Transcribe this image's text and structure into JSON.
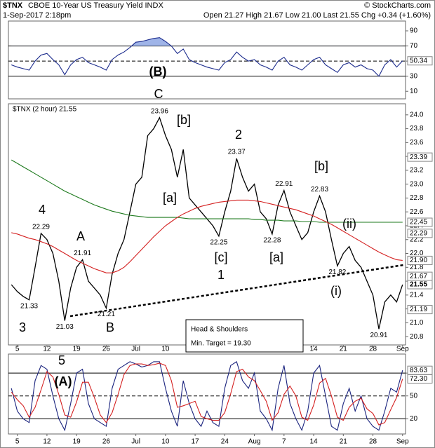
{
  "header": {
    "symbol": "$TNX",
    "name": "CBOE 10-Year US Treasury Yield INDX",
    "credit": "© StockCharts.com",
    "date": "1-Sep-2017 2:18pm",
    "quote": "Open 21.27 High 21.67 Low 21.00 Last 21.55 Chg +0.34 (+1.60%)"
  },
  "chart_data": [
    {
      "type": "line",
      "ylim": [
        0,
        103
      ],
      "yticks": [
        10,
        30,
        50,
        70,
        90
      ],
      "hlines": [
        70,
        30
      ],
      "dashed_hlines": [
        50
      ],
      "fill_above": 70,
      "fill_color": "#9fb4e8",
      "series": [
        {
          "color": "#1a2a8c",
          "values": [
            45,
            42,
            40,
            38,
            50,
            58,
            60,
            52,
            45,
            32,
            45,
            52,
            55,
            48,
            45,
            42,
            38,
            52,
            58,
            62,
            68,
            75,
            76,
            78,
            80,
            81,
            76,
            70,
            60,
            66,
            52,
            48,
            45,
            42,
            40,
            38,
            48,
            52,
            62,
            55,
            50,
            52,
            45,
            42,
            38,
            50,
            55,
            45,
            42,
            38,
            45,
            52,
            55,
            45,
            40,
            35,
            45,
            48,
            42,
            45,
            40,
            38,
            30,
            45,
            52,
            42,
            50.34
          ]
        }
      ],
      "last_label": 50.34,
      "annotations": [
        {
          "text": "(B)",
          "color": "#000000"
        }
      ]
    },
    {
      "type": "line",
      "legend": "$TNX (2 hour) 21.55",
      "ylim": [
        20.68,
        24.16
      ],
      "yticks": [
        20.8,
        {
          "value": 21,
          "label": "21.0"
        },
        21.2,
        21.4,
        21.6,
        21.8,
        {
          "value": 22,
          "label": "22.0"
        },
        22.2,
        22.4,
        22.6,
        22.8,
        {
          "value": 23,
          "label": "23.0"
        },
        23.2,
        23.4,
        23.6,
        23.8,
        {
          "value": 24,
          "label": "24.0"
        }
      ],
      "categories": [
        null,
        "5",
        null,
        null,
        null,
        null,
        "12",
        null,
        null,
        null,
        null,
        "19",
        null,
        null,
        null,
        null,
        "26",
        null,
        null,
        null,
        null,
        "Jul",
        null,
        null,
        null,
        null,
        "10",
        null,
        null,
        null,
        null,
        "17",
        null,
        null,
        null,
        null,
        "24",
        null,
        null,
        null,
        null,
        "Aug",
        null,
        null,
        null,
        null,
        "7",
        null,
        null,
        null,
        null,
        "14",
        null,
        null,
        null,
        null,
        "21",
        null,
        null,
        null,
        null,
        "28",
        null,
        null,
        null,
        null,
        "Sep"
      ],
      "series": [
        {
          "name": "$TNX",
          "color": "#000000",
          "values": [
            21.55,
            21.45,
            21.38,
            21.33,
            21.8,
            22.29,
            22.2,
            22.0,
            21.6,
            21.03,
            21.5,
            21.8,
            21.91,
            21.6,
            21.5,
            21.4,
            21.21,
            21.7,
            22.0,
            22.2,
            22.6,
            23.0,
            23.1,
            23.7,
            23.8,
            23.96,
            23.7,
            23.5,
            23.1,
            23.5,
            22.8,
            22.7,
            22.6,
            22.5,
            22.4,
            22.25,
            22.6,
            22.9,
            23.37,
            23.1,
            22.9,
            23.0,
            22.6,
            22.5,
            22.28,
            22.7,
            22.91,
            22.6,
            22.4,
            22.2,
            22.3,
            22.6,
            22.83,
            22.6,
            22.2,
            21.82,
            22.0,
            22.1,
            21.9,
            21.8,
            21.6,
            21.4,
            20.91,
            21.3,
            21.4,
            21.3,
            21.55
          ],
          "value_labels": [
            null,
            null,
            null,
            "21.33",
            null,
            "22.29",
            null,
            null,
            null,
            "21.03",
            null,
            null,
            "21.91",
            null,
            null,
            null,
            "21.21",
            null,
            null,
            null,
            null,
            null,
            null,
            null,
            null,
            "23.96",
            null,
            null,
            null,
            null,
            null,
            null,
            null,
            null,
            null,
            "22.25",
            null,
            null,
            "23.37",
            null,
            null,
            null,
            null,
            null,
            "22.28",
            null,
            "22.91",
            null,
            null,
            null,
            null,
            null,
            "22.83",
            null,
            null,
            "21.82",
            null,
            null,
            null,
            null,
            null,
            null,
            "20.91",
            null,
            null,
            null,
            null
          ]
        },
        {
          "color": "#1e7a1e",
          "values": [
            23.35,
            23.3,
            23.25,
            23.2,
            23.15,
            23.1,
            23.05,
            23.0,
            22.95,
            22.9,
            22.86,
            22.82,
            22.78,
            22.74,
            22.7,
            22.67,
            22.64,
            22.61,
            22.59,
            22.57,
            22.55,
            22.54,
            22.53,
            22.52,
            22.52,
            22.52,
            22.52,
            22.52,
            22.52,
            22.51,
            22.5,
            22.5,
            22.5,
            22.5,
            22.5,
            22.5,
            22.5,
            22.5,
            22.5,
            22.5,
            22.5,
            22.49,
            22.49,
            22.48,
            22.48,
            22.48,
            22.47,
            22.47,
            22.47,
            22.46,
            22.46,
            22.46,
            22.45,
            22.45,
            22.45,
            22.45,
            22.45,
            22.45,
            22.45,
            22.45,
            22.45,
            22.45,
            22.45,
            22.45,
            22.45,
            22.45,
            22.45
          ]
        },
        {
          "color": "#d42020",
          "values": [
            22.3,
            22.28,
            22.25,
            22.22,
            22.2,
            22.17,
            22.14,
            22.1,
            22.05,
            22.0,
            21.95,
            21.9,
            21.86,
            21.82,
            21.78,
            21.75,
            21.72,
            21.72,
            21.75,
            21.8,
            21.88,
            21.97,
            22.06,
            22.15,
            22.24,
            22.32,
            22.4,
            22.46,
            22.52,
            22.57,
            22.61,
            22.65,
            22.68,
            22.7,
            22.72,
            22.74,
            22.75,
            22.76,
            22.77,
            22.77,
            22.77,
            22.76,
            22.75,
            22.73,
            22.71,
            22.69,
            22.67,
            22.65,
            22.63,
            22.6,
            22.57,
            22.54,
            22.5,
            22.46,
            22.42,
            22.37,
            22.32,
            22.27,
            22.22,
            22.17,
            22.12,
            22.07,
            22.02,
            21.98,
            21.94,
            21.91,
            21.9
          ]
        }
      ],
      "right_labels": [
        23.39,
        22.45,
        22.29,
        {
          "value": 21.9,
          "label": "21.90"
        },
        21.67,
        21.55,
        21.19
      ],
      "annotations": [
        {
          "text": "4",
          "color": "#9b30d9"
        },
        {
          "text": "A",
          "color": "#9b30d9"
        },
        {
          "text": "3",
          "color": "#9b30d9"
        },
        {
          "text": "B",
          "color": "#9b30d9"
        },
        {
          "text": "C",
          "color": "#9b30d9"
        },
        {
          "text": "[b]",
          "color": "#cc0000"
        },
        {
          "text": "[a]",
          "color": "#cc0000"
        },
        {
          "text": "2",
          "color": "#9b30d9"
        },
        {
          "text": "[c]",
          "color": "#cc0000"
        },
        {
          "text": "1",
          "color": "#9b30d9"
        },
        {
          "text": "[b]",
          "color": "#cc0000"
        },
        {
          "text": "[a]",
          "color": "#cc0000"
        },
        {
          "text": "(ii)",
          "color": "#2e8b22"
        },
        {
          "text": "(i)",
          "color": "#2e8b22"
        }
      ],
      "note": [
        "Head & Shoulders",
        "Min. Target = 19.30"
      ]
    },
    {
      "type": "line",
      "ylim": [
        0,
        105
      ],
      "yticks": [
        20,
        50,
        80
      ],
      "hlines": [
        80,
        20
      ],
      "dashed_hlines": [
        50
      ],
      "categories": [
        null,
        "5",
        null,
        null,
        null,
        null,
        "12",
        null,
        null,
        null,
        null,
        "19",
        null,
        null,
        null,
        null,
        "26",
        null,
        null,
        null,
        null,
        "Jul",
        null,
        null,
        null,
        null,
        "10",
        null,
        null,
        null,
        null,
        "17",
        null,
        null,
        null,
        null,
        "24",
        null,
        null,
        null,
        null,
        "Aug",
        null,
        null,
        null,
        null,
        "7",
        null,
        null,
        null,
        null,
        "14",
        null,
        null,
        null,
        null,
        "21",
        null,
        null,
        null,
        null,
        "28",
        null,
        null,
        null,
        null,
        "Sep"
      ],
      "series": [
        {
          "color": "#1a237e",
          "values": [
            60,
            30,
            20,
            15,
            70,
            90,
            85,
            50,
            20,
            5,
            40,
            80,
            85,
            40,
            20,
            15,
            10,
            60,
            85,
            90,
            95,
            92,
            88,
            90,
            95,
            95,
            60,
            30,
            10,
            70,
            40,
            20,
            10,
            30,
            15,
            10,
            60,
            90,
            95,
            70,
            60,
            80,
            30,
            20,
            5,
            60,
            90,
            40,
            20,
            5,
            30,
            80,
            90,
            50,
            10,
            5,
            40,
            60,
            30,
            50,
            20,
            10,
            5,
            30,
            60,
            55,
            83.63
          ]
        },
        {
          "color": "#d42020",
          "values": [
            55,
            45,
            37,
            22,
            35,
            58,
            82,
            75,
            52,
            25,
            22,
            42,
            68,
            68,
            48,
            25,
            15,
            28,
            52,
            78,
            90,
            92,
            92,
            90,
            91,
            93,
            90,
            70,
            35,
            37,
            40,
            43,
            23,
            20,
            18,
            18,
            28,
            53,
            82,
            85,
            75,
            70,
            57,
            43,
            18,
            28,
            52,
            63,
            50,
            22,
            18,
            38,
            67,
            73,
            50,
            22,
            18,
            35,
            43,
            47,
            33,
            27,
            12,
            15,
            32,
            48,
            72.3
          ]
        }
      ],
      "right_labels": [
        83.63,
        {
          "value": 72.3,
          "label": "72.30"
        }
      ],
      "annotations": [
        {
          "text": "5",
          "color": "#9b30d9"
        },
        {
          "text": "(A)",
          "color": "#000000"
        }
      ]
    }
  ]
}
